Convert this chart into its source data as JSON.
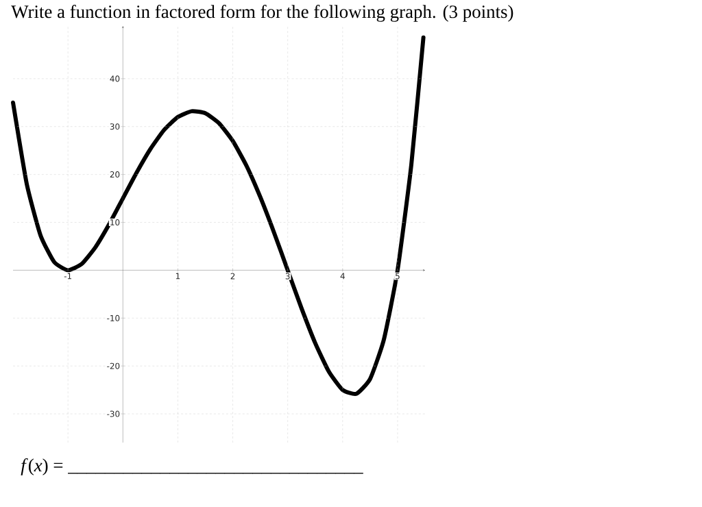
{
  "chart_data": {
    "type": "line",
    "title": "Write a function in factored form for the following graph.  (3 points)",
    "annotations": [
      "*f*(*x*) = ________________________________"
    ],
    "x": [
      -2,
      -1.75,
      -1.5,
      -1.25,
      -1,
      -0.75,
      -0.5,
      -0.25,
      0,
      0.25,
      0.5,
      0.75,
      1,
      1.25,
      1.5,
      1.75,
      2,
      2.25,
      2.5,
      2.75,
      3,
      3.25,
      3.5,
      3.75,
      4,
      4.25,
      4.5,
      4.75,
      5,
      5.25,
      5.47
    ],
    "series": [
      {
        "color": "#000000",
        "values": [
          35,
          18,
          7.3,
          1.7,
          0,
          1.3,
          4.8,
          9.6,
          15,
          20.4,
          25.3,
          29.3,
          32,
          33.2,
          32.8,
          30.7,
          27,
          21.8,
          15.3,
          7.9,
          0,
          -7.9,
          -15.2,
          -21.2,
          -25,
          -25.8,
          -22.7,
          -14.5,
          0,
          22,
          48.6
        ]
      }
    ],
    "xlim": [
      -2,
      5.5
    ],
    "ylim": [
      -36,
      51
    ],
    "xticks": [
      -1,
      1,
      2,
      3,
      4,
      5
    ],
    "yticks": [
      40,
      30,
      20,
      10,
      -10,
      -20,
      -30
    ],
    "grid": true,
    "marker": "none",
    "line_style": "solid"
  }
}
